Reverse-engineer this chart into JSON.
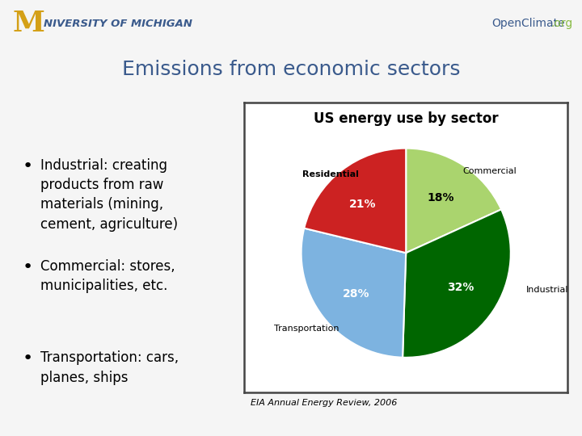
{
  "title": "Emissions from economic sectors",
  "title_color": "#3a5a8c",
  "title_fontsize": 18,
  "background_color": "#f0f0f0",
  "header_bar_color": "#3a5a8c",
  "bullet_points": [
    "Industrial: creating\nproducts from raw\nmaterials (mining,\ncement, agriculture)",
    "Commercial: stores,\nmunicipalities, etc.",
    "Transportation: cars,\nplanes, ships"
  ],
  "bullet_fontsize": 12,
  "pie_title": "US energy use by sector",
  "pie_title_fontsize": 12,
  "pie_values": [
    21,
    18,
    32,
    28
  ],
  "pie_labels": [
    "Residential",
    "Commercial",
    "Industrial",
    "Transportation"
  ],
  "pie_colors": [
    "#cc2222",
    "#aad46e",
    "#006600",
    "#7db3e0"
  ],
  "pie_pct_labels": [
    "21%",
    "18%",
    "32%",
    "28%"
  ],
  "pie_pct_colors": [
    "white",
    "black",
    "white",
    "white"
  ],
  "pie_startangle": 90,
  "caption": "EIA Annual Energy Review, 2006",
  "caption_fontsize": 8,
  "univ_text": "NIVERSITY OF MICHIGAN",
  "open_climate_text": "OpenClimate",
  "open_climate_color": "#3a5a8c",
  "univ_color": "#3a5a8c",
  "m_color": "#d4a017",
  "slide_bg": "#f5f5f5"
}
